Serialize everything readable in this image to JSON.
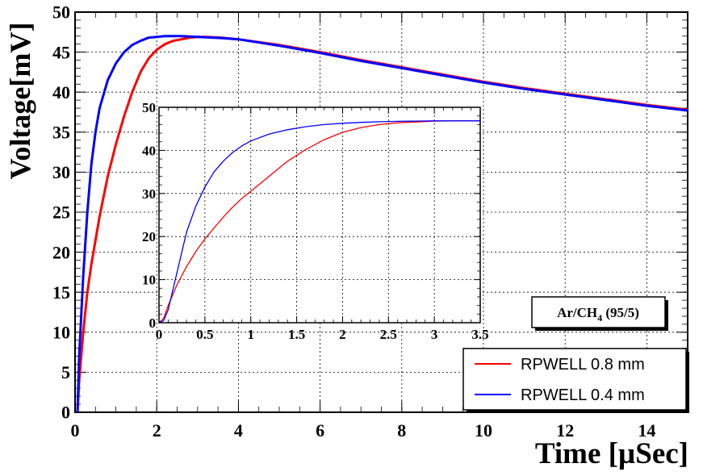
{
  "chart_data": [
    {
      "type": "line",
      "xlabel": "Time [µSec]",
      "ylabel": "Voltage[mV]",
      "xlim": [
        0,
        15
      ],
      "ylim": [
        0,
        50
      ],
      "x_ticks": [
        "0",
        "2",
        "4",
        "6",
        "8",
        "10",
        "12",
        "14"
      ],
      "y_ticks": [
        "0",
        "5",
        "10",
        "15",
        "20",
        "25",
        "30",
        "35",
        "40",
        "45",
        "50"
      ],
      "grid": true,
      "legend_position": "bottom-right",
      "series": [
        {
          "name": "RPWELL 0.8 mm",
          "color": "#ff0000",
          "x": [
            0.06,
            0.1,
            0.2,
            0.3,
            0.4,
            0.5,
            0.6,
            0.8,
            1.0,
            1.2,
            1.4,
            1.6,
            1.8,
            2.0,
            2.2,
            2.4,
            2.6,
            2.8,
            3.0,
            3.2,
            3.4,
            3.6,
            4.0,
            5.0,
            6.0,
            7.0,
            8.0,
            9.0,
            10.0,
            11.0,
            12.0,
            13.0,
            14.0,
            15.0
          ],
          "y": [
            0,
            4,
            10,
            15,
            18.5,
            21.5,
            24.5,
            29.5,
            33.5,
            37,
            40,
            42.5,
            44.2,
            45.3,
            46,
            46.4,
            46.6,
            46.8,
            46.9,
            46.9,
            46.85,
            46.8,
            46.6,
            45.9,
            45.0,
            44.0,
            43.1,
            42.2,
            41.3,
            40.5,
            39.8,
            39.1,
            38.4,
            37.8
          ]
        },
        {
          "name": "RPWELL 0.4 mm",
          "color": "#0000ff",
          "x": [
            0.06,
            0.1,
            0.2,
            0.3,
            0.4,
            0.5,
            0.6,
            0.8,
            1.0,
            1.2,
            1.4,
            1.6,
            1.8,
            2.0,
            2.2,
            2.4,
            2.6,
            2.8,
            3.0,
            3.2,
            3.4,
            3.6,
            4.0,
            5.0,
            6.0,
            7.0,
            8.0,
            9.0,
            10.0,
            11.0,
            12.0,
            13.0,
            14.0,
            15.0
          ],
          "y": [
            0,
            7,
            17,
            25,
            31,
            35,
            38,
            41.5,
            43.6,
            45.0,
            45.9,
            46.4,
            46.8,
            46.9,
            47.0,
            47.0,
            47.0,
            46.95,
            46.9,
            46.85,
            46.8,
            46.75,
            46.6,
            45.8,
            44.9,
            43.9,
            43.0,
            42.1,
            41.2,
            40.4,
            39.7,
            39.0,
            38.3,
            37.7
          ]
        }
      ],
      "annotation": "Ar/CH4 (95/5)"
    },
    {
      "type": "line",
      "xlim": [
        0,
        3.5
      ],
      "ylim": [
        0,
        50
      ],
      "x_ticks": [
        "0",
        "0.5",
        "1",
        "1.5",
        "2",
        "2.5",
        "3",
        "3.5"
      ],
      "y_ticks": [
        "0",
        "10",
        "20",
        "30",
        "40",
        "50"
      ],
      "grid": true,
      "series": [
        {
          "color": "#ff0000",
          "x": [
            0.0,
            0.05,
            0.1,
            0.2,
            0.3,
            0.4,
            0.5,
            0.6,
            0.7,
            0.8,
            0.9,
            1.0,
            1.2,
            1.4,
            1.6,
            1.8,
            2.0,
            2.2,
            2.4,
            2.6,
            2.8,
            3.0,
            3.2,
            3.5
          ],
          "y": [
            0,
            1,
            4,
            9,
            13,
            16.5,
            19.5,
            22,
            24.5,
            26.8,
            28.8,
            30.5,
            34,
            37.5,
            40.2,
            42.5,
            44.2,
            45.3,
            46.0,
            46.4,
            46.6,
            46.8,
            46.85,
            46.85
          ]
        },
        {
          "color": "#0000ff",
          "x": [
            0.0,
            0.05,
            0.1,
            0.2,
            0.3,
            0.4,
            0.5,
            0.6,
            0.7,
            0.8,
            0.9,
            1.0,
            1.2,
            1.4,
            1.6,
            1.8,
            2.0,
            2.2,
            2.4,
            2.6,
            2.8,
            3.0,
            3.2,
            3.5
          ],
          "y": [
            0,
            0.5,
            3,
            12,
            21,
            27,
            31.5,
            35,
            37.5,
            39.5,
            41,
            42.2,
            43.8,
            44.8,
            45.5,
            46.0,
            46.3,
            46.5,
            46.65,
            46.75,
            46.8,
            46.85,
            46.85,
            46.85
          ]
        }
      ]
    }
  ],
  "legend": {
    "items": [
      {
        "label": "RPWELL 0.8 mm",
        "color": "#ff0000"
      },
      {
        "label": "RPWELL 0.4 mm",
        "color": "#0000ff"
      }
    ]
  },
  "annotation": {
    "prefix": "Ar/CH",
    "subscript": "4",
    "suffix": " (95/5)"
  }
}
